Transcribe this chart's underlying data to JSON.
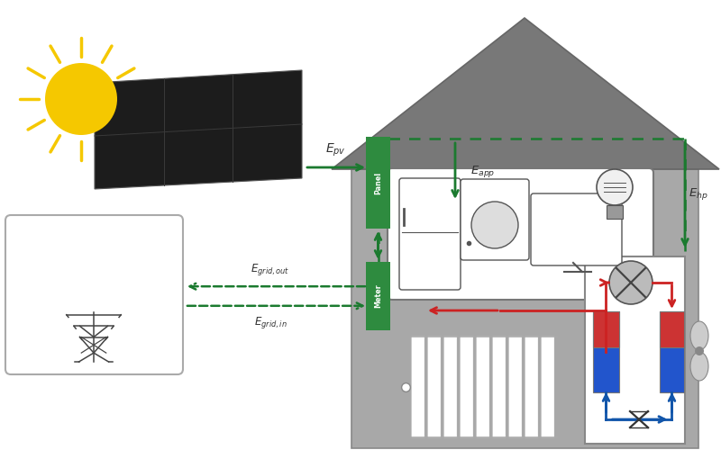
{
  "bg": "#ffffff",
  "house_wall": "#a8a8a8",
  "house_roof": "#787878",
  "green_dark": "#1b7a2f",
  "green_box": "#2e8b3f",
  "red": "#cc2222",
  "blue": "#1155aa",
  "sun_yellow": "#f5c800",
  "panel_dark": "#1c1c1c",
  "panel_grid": "#3a3a3a",
  "heat_red": "#cc3333",
  "heat_blue": "#2255cc"
}
